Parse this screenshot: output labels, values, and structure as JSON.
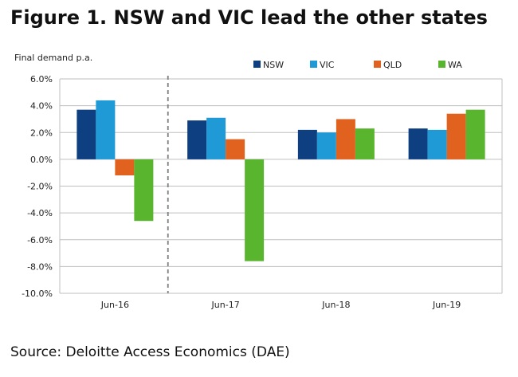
{
  "figure": {
    "title": "Figure 1. NSW and VIC lead the other states",
    "source": "Source: Deloitte Access Economics (DAE)"
  },
  "chart_data": {
    "type": "bar",
    "title": "",
    "ylabel": "Final demand p.a.",
    "xlabel": "",
    "categories": [
      "Jun-16",
      "Jun-17",
      "Jun-18",
      "Jun-19"
    ],
    "series": [
      {
        "name": "NSW",
        "color": "#0e3f80",
        "values": [
          3.7,
          2.9,
          2.2,
          2.3
        ]
      },
      {
        "name": "VIC",
        "color": "#1f9ad6",
        "values": [
          4.4,
          3.1,
          2.0,
          2.2
        ]
      },
      {
        "name": "QLD",
        "color": "#e0621e",
        "values": [
          -1.2,
          1.5,
          3.0,
          3.4
        ]
      },
      {
        "name": "WA",
        "color": "#5ab52e",
        "values": [
          -4.6,
          -7.6,
          2.3,
          3.7
        ]
      }
    ],
    "ylim": [
      -10,
      6
    ],
    "yticks": [
      6,
      4,
      2,
      0,
      -2,
      -4,
      -6,
      -8,
      -10
    ],
    "ytick_labels": [
      "6.0%",
      "4.0%",
      "2.0%",
      "0.0%",
      "-2.0%",
      "-4.0%",
      "-6.0%",
      "-8.0%",
      "-10.0%"
    ],
    "grid": true,
    "legend": "top-right",
    "separator_after_category": "Jun-16"
  }
}
